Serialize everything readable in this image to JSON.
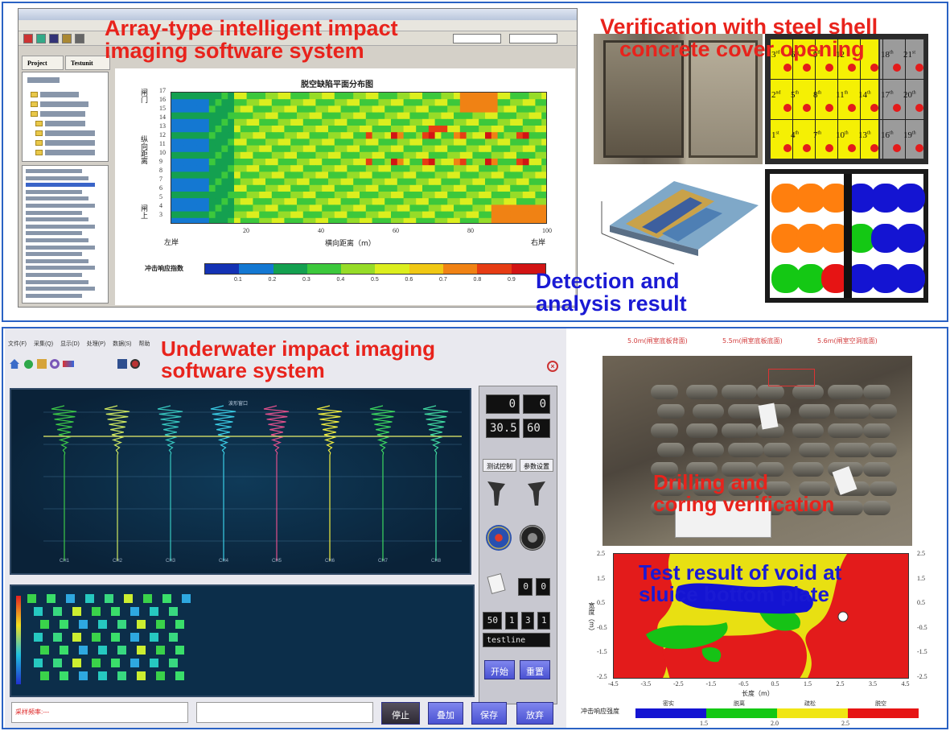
{
  "top": {
    "caption_software": "Array-type intelligent impact imaging software system",
    "caption_software_line1": "Array-type intelligent impact",
    "caption_software_line2": "imaging software system",
    "caption_verification_line1": "Verification with steel shell",
    "caption_verification_line2": "concrete cover opening",
    "caption_detection_line1": "Detection and",
    "caption_detection_line2": "analysis result",
    "tabs": [
      "Project",
      "Testunit"
    ],
    "plot_title": "脱空缺陷平面分布图",
    "y_axis_label_upper": "闸门",
    "y_axis_label_mid": "纵向距离",
    "y_axis_label_lower": "闸上",
    "x_axis_label": "横向距离（m）",
    "x_left_label": "左岸",
    "x_right_label": "右岸",
    "colorbar_label": "冲击响应指数",
    "y_ticks": [
      "17",
      "16",
      "15",
      "14",
      "13",
      "12",
      "11",
      "10",
      "9",
      "8",
      "7",
      "6",
      "5",
      "4",
      "3"
    ],
    "x_ticks": [
      "20",
      "40",
      "60",
      "80",
      "100"
    ],
    "colorbar_ticks": [
      "0.1",
      "0.2",
      "0.3",
      "0.4",
      "0.5",
      "0.6",
      "0.7",
      "0.8",
      "0.9"
    ],
    "colorbar_colors": [
      "#1432b4",
      "#1478d2",
      "#14a050",
      "#3cc83c",
      "#96dc28",
      "#dcee1e",
      "#f0c814",
      "#f08214",
      "#e63c14",
      "#d21414"
    ],
    "grid_labels": [
      {
        "t": "3",
        "s": "rd"
      },
      {
        "t": "6",
        "s": "th"
      },
      {
        "t": "9",
        "s": "th"
      },
      {
        "t": "12",
        "s": ""
      },
      {
        "t": "1",
        "s": ""
      },
      {
        "t": "18",
        "s": "th"
      },
      {
        "t": "21",
        "s": "st"
      },
      {
        "t": "2",
        "s": "nd"
      },
      {
        "t": "5",
        "s": "th"
      },
      {
        "t": "8",
        "s": "th"
      },
      {
        "t": "11",
        "s": "th"
      },
      {
        "t": "14",
        "s": "th"
      },
      {
        "t": "17",
        "s": "th"
      },
      {
        "t": "20",
        "s": "th"
      },
      {
        "t": "1",
        "s": "st"
      },
      {
        "t": "4",
        "s": "th"
      },
      {
        "t": "7",
        "s": "th"
      },
      {
        "t": "10",
        "s": "th"
      },
      {
        "t": "13",
        "s": "th"
      },
      {
        "t": "16",
        "s": "th"
      },
      {
        "t": "19",
        "s": "th"
      }
    ]
  },
  "bottom": {
    "caption_software_line1": "Underwater impact imaging",
    "caption_software_line2": "software system",
    "caption_drilling_line1": "Drilling and",
    "caption_drilling_line2": "coring verification",
    "caption_test_line1": "Test result of void at",
    "caption_test_line2": "sluice bottom plate",
    "menu": [
      "文件(F)",
      "采集(Q)",
      "显示(D)",
      "处理(P)",
      "数据(S)",
      "帮助"
    ],
    "wave_title": "波形窗口",
    "wave_x_ticks": [
      "CH1",
      "CH2",
      "CH3",
      "CH4",
      "CH5",
      "CH6",
      "CH7",
      "CH8"
    ],
    "digits": {
      "a": "0",
      "b": "0",
      "c": "30.5",
      "d": "60",
      "e": "0",
      "f": "0",
      "g": "50",
      "h": "1",
      "i": "3",
      "j": "1"
    },
    "side_tabs": [
      "测试控制",
      "参数设置"
    ],
    "test_name": "testline",
    "side_buttons": [
      "开始",
      "重置"
    ],
    "status_text": "采样频率:---",
    "bottom_buttons": [
      "停止",
      "叠加",
      "保存",
      "放弃"
    ],
    "survey_labels": [
      "5.0m(闸室底板背面)",
      "5.5m(闸室底板底面)",
      "5.6m(闸室空洞底面)"
    ],
    "contour_x_ticks": [
      "-4.5",
      "-3.5",
      "-2.5",
      "-1.5",
      "-0.5",
      "0.5",
      "1.5",
      "2.5",
      "3.5",
      "4.5"
    ],
    "contour_y_ticks": [
      "2.5",
      "1.5",
      "0.5",
      "-0.5",
      "-1.5",
      "-2.5"
    ],
    "contour_x_label": "长度（m）",
    "contour_y_label": "宽度（m）",
    "legend_title": "冲击响应强度",
    "legend_classes": [
      "密实",
      "脱离",
      "疏松",
      "脱空"
    ],
    "legend_ticks": [
      "1.5",
      "2.0",
      "2.5"
    ],
    "legend_colors": [
      "#1414d2",
      "#14c814",
      "#f0e614",
      "#e61414"
    ]
  }
}
